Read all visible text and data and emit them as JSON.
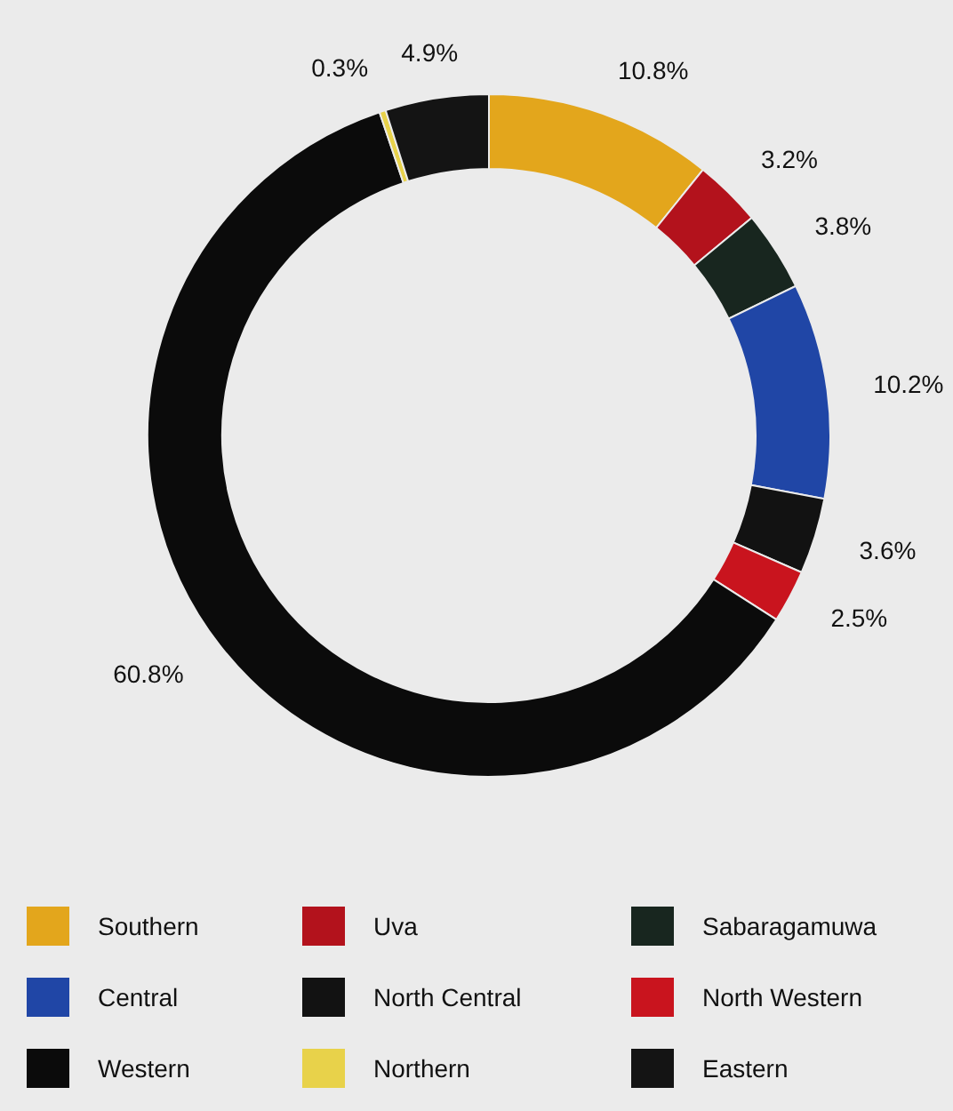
{
  "chart_data": {
    "type": "donut",
    "categories": [
      "Southern",
      "Uva",
      "Sabaragamuwa",
      "Central",
      "North Central",
      "North Western",
      "Western",
      "Northern",
      "Eastern"
    ],
    "values": [
      10.8,
      3.2,
      3.8,
      10.2,
      3.6,
      2.5,
      60.8,
      0.3,
      4.9
    ],
    "value_labels": [
      "10.8%",
      "3.2%",
      "3.8%",
      "10.2%",
      "3.6%",
      "2.5%",
      "60.8%",
      "0.3%",
      "4.9%"
    ],
    "colors": [
      "#e3a61c",
      "#b3121c",
      "#18261f",
      "#2046a6",
      "#121212",
      "#c9141e",
      "#0b0b0b",
      "#e8d24a",
      "#141414"
    ],
    "legend": "bottom"
  }
}
